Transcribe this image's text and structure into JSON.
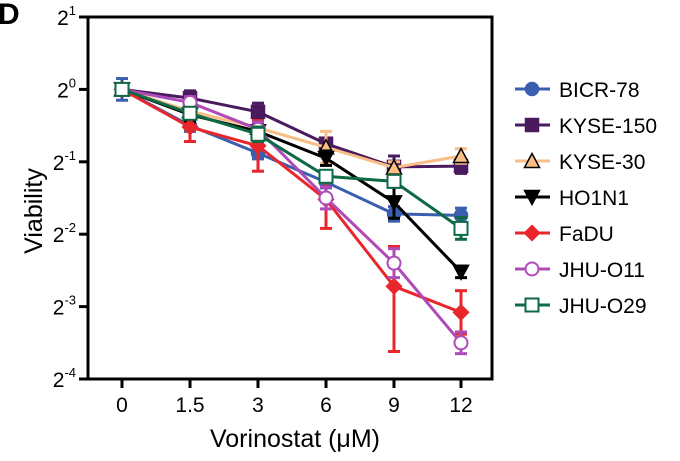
{
  "panel_label": "D",
  "chart_data": {
    "type": "line",
    "xlabel": "Vorinostat (μM)",
    "ylabel": "Viability",
    "y_scale": "log2",
    "ylim_log2": [
      -4,
      1
    ],
    "categories": [
      "0",
      "1.5",
      "3",
      "6",
      "9",
      "12"
    ],
    "y_ticks": [
      {
        "base": "2",
        "exp": "1",
        "log2": 1
      },
      {
        "base": "2",
        "exp": "0",
        "log2": 0
      },
      {
        "base": "2",
        "exp": "-1",
        "log2": -1
      },
      {
        "base": "2",
        "exp": "-2",
        "log2": -2
      },
      {
        "base": "2",
        "exp": "-3",
        "log2": -3
      },
      {
        "base": "2",
        "exp": "-4",
        "log2": -4
      }
    ],
    "legend_position": "right",
    "grid": false,
    "series": [
      {
        "name": "BICR-78",
        "color": "#3a5fae",
        "marker": "circle-filled",
        "log2_values": [
          0,
          -0.5,
          -0.88,
          -1.28,
          -1.72,
          -1.74
        ],
        "err_up": [
          0.15,
          0.08,
          0.08,
          0.08,
          0.1,
          0.1
        ],
        "err_down": [
          0.15,
          0.08,
          0.08,
          0.08,
          0.1,
          0.1
        ]
      },
      {
        "name": "KYSE-150",
        "color": "#4a1a5e",
        "marker": "square-filled",
        "log2_values": [
          0,
          -0.12,
          -0.31,
          -0.75,
          -1.07,
          -1.06
        ],
        "err_up": [
          0.06,
          0.1,
          0.12,
          0.07,
          0.15,
          0.1
        ],
        "err_down": [
          0.06,
          0.1,
          0.12,
          0.07,
          0.15,
          0.1
        ]
      },
      {
        "name": "KYSE-30",
        "color": "#f9bd86",
        "marker": "triangle-filled",
        "log2_values": [
          0,
          -0.3,
          -0.53,
          -0.8,
          -1.08,
          -0.92
        ],
        "err_up": [
          0.06,
          0.06,
          0.06,
          0.22,
          0.08,
          0.1
        ],
        "err_down": [
          0.06,
          0.06,
          0.06,
          0.22,
          0.08,
          0.1
        ]
      },
      {
        "name": "HO1N1",
        "color": "#000000",
        "marker": "triangle-down-filled",
        "log2_values": [
          0,
          -0.35,
          -0.58,
          -0.95,
          -1.56,
          -2.52
        ],
        "err_up": [
          0.06,
          0.1,
          0.1,
          0.1,
          0.22,
          0.08
        ],
        "err_down": [
          0.06,
          0.1,
          0.1,
          0.1,
          0.22,
          0.08
        ]
      },
      {
        "name": "FaDU",
        "color": "#e8262b",
        "marker": "diamond-filled",
        "log2_values": [
          0,
          -0.52,
          -0.78,
          -1.52,
          -2.72,
          -3.08
        ],
        "err_up": [
          0.06,
          0.2,
          0.35,
          0.4,
          0.55,
          0.3
        ],
        "err_down": [
          0.06,
          0.2,
          0.35,
          0.4,
          0.9,
          0.3
        ]
      },
      {
        "name": "JHU-O11",
        "color": "#b04ab8",
        "marker": "circle-open",
        "log2_values": [
          0,
          -0.18,
          -0.55,
          -1.5,
          -2.4,
          -3.5
        ],
        "err_up": [
          0.06,
          0.08,
          0.1,
          0.15,
          0.2,
          0.15
        ],
        "err_down": [
          0.06,
          0.08,
          0.1,
          0.15,
          0.2,
          0.15
        ]
      },
      {
        "name": "JHU-O29",
        "color": "#0d6a44",
        "marker": "square-open",
        "log2_values": [
          0,
          -0.33,
          -0.62,
          -1.2,
          -1.27,
          -1.92
        ],
        "err_up": [
          0.06,
          0.06,
          0.1,
          0.08,
          0.08,
          0.15
        ],
        "err_down": [
          0.06,
          0.06,
          0.1,
          0.08,
          0.08,
          0.15
        ]
      }
    ]
  }
}
